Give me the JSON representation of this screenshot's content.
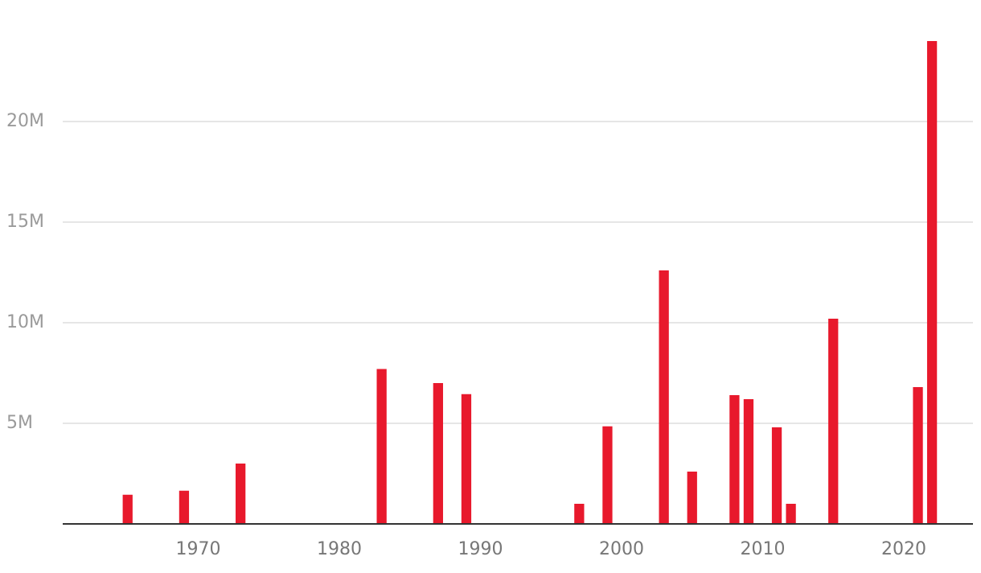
{
  "chart_data": {
    "type": "bar",
    "x": [
      1965,
      1969,
      1973,
      1983,
      1987,
      1989,
      1997,
      1999,
      2003,
      2005,
      2008,
      2009,
      2011,
      2012,
      2015,
      2021,
      2022
    ],
    "values": [
      1450000,
      1650000,
      3000000,
      7700000,
      7000000,
      6450000,
      1000000,
      4850000,
      12600000,
      2600000,
      6400000,
      6200000,
      4800000,
      1000000,
      10200000,
      6800000,
      24000000
    ],
    "color": "#e8192c",
    "xlim": [
      1960.4,
      2024.9
    ],
    "xticks": [
      1970,
      1980,
      1990,
      2000,
      2010,
      2020
    ],
    "ylim": [
      0,
      26000000
    ],
    "yticks": [
      {
        "value": 5000000,
        "label": "5M"
      },
      {
        "value": 10000000,
        "label": "10M"
      },
      {
        "value": 15000000,
        "label": "15M"
      },
      {
        "value": 20000000,
        "label": "20M"
      }
    ],
    "grid": true
  }
}
